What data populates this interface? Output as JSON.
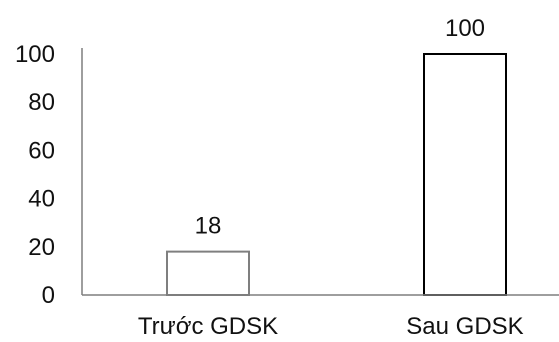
{
  "chart_data": {
    "type": "bar",
    "categories": [
      "Trước GDSK",
      "Sau GDSK"
    ],
    "values": [
      18,
      100
    ],
    "data_labels": [
      "18",
      "100"
    ],
    "title": "",
    "xlabel": "",
    "ylabel": "",
    "ylim": [
      0,
      100
    ],
    "yticks": [
      0,
      20,
      40,
      60,
      80,
      100
    ],
    "ytick_labels": [
      "0",
      "20",
      "40",
      "60",
      "80",
      "100"
    ],
    "grid": false,
    "legend": "none",
    "bar_styles": [
      {
        "fill": "#ffffff",
        "stroke": "#7f7f7f"
      },
      {
        "fill": "#ffffff",
        "stroke": "#000000"
      }
    ],
    "axis_color": "#7f7f7f"
  }
}
